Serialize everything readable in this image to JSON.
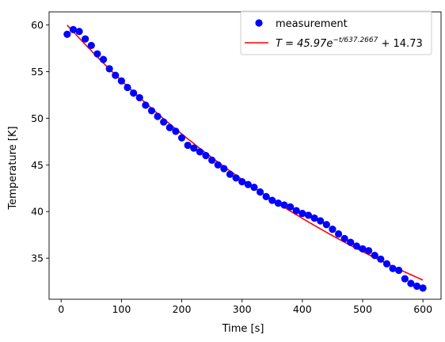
{
  "chart_data": {
    "type": "scatter",
    "xlabel": "Time [s]",
    "ylabel": "Temperature [K]",
    "xlim": [
      -20,
      630
    ],
    "ylim": [
      30.6,
      61.4
    ],
    "xticks": [
      0,
      100,
      200,
      300,
      400,
      500,
      600
    ],
    "yticks": [
      35,
      40,
      45,
      50,
      55,
      60
    ],
    "grid": false,
    "legend_position": "top-right",
    "series": [
      {
        "name": "measurement",
        "kind": "markers",
        "color": "#0000ff",
        "x": [
          10,
          20,
          30,
          40,
          50,
          60,
          70,
          80,
          90,
          100,
          110,
          120,
          130,
          140,
          150,
          160,
          170,
          180,
          190,
          200,
          210,
          220,
          230,
          240,
          250,
          260,
          270,
          280,
          290,
          300,
          310,
          320,
          330,
          340,
          350,
          360,
          370,
          380,
          390,
          400,
          410,
          420,
          430,
          440,
          450,
          460,
          470,
          480,
          490,
          500,
          510,
          520,
          530,
          540,
          550,
          560,
          570,
          580,
          590,
          600
        ],
        "y": [
          59.0,
          59.5,
          59.3,
          58.5,
          57.8,
          56.9,
          56.3,
          55.3,
          54.6,
          54.0,
          53.3,
          52.7,
          52.2,
          51.4,
          50.8,
          50.2,
          49.6,
          49.0,
          48.6,
          47.9,
          47.1,
          46.8,
          46.4,
          46.0,
          45.5,
          45.0,
          44.6,
          44.0,
          43.6,
          43.2,
          42.9,
          42.6,
          42.1,
          41.6,
          41.2,
          40.9,
          40.7,
          40.5,
          40.1,
          39.8,
          39.6,
          39.3,
          39.0,
          38.6,
          38.1,
          37.6,
          37.1,
          36.7,
          36.3,
          36.0,
          35.8,
          35.3,
          34.9,
          34.4,
          33.9,
          33.7,
          32.8,
          32.3,
          32.0,
          31.8
        ]
      },
      {
        "name": "T = 45.97e^(-t/637.2667) + 14.73",
        "kind": "line",
        "color": "#ff0000",
        "model": {
          "A": 45.97,
          "tau": 637.2667,
          "C": 14.73
        },
        "x_range": [
          10,
          600
        ]
      }
    ],
    "legend": {
      "measurement_label": "measurement",
      "fit_label_prefix": "T = 45.97e",
      "fit_label_exponent": "−t/637.2667",
      "fit_label_suffix": " + 14.73"
    }
  }
}
